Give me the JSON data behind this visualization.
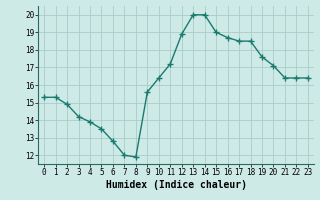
{
  "x": [
    0,
    1,
    2,
    3,
    4,
    5,
    6,
    7,
    8,
    9,
    10,
    11,
    12,
    13,
    14,
    15,
    16,
    17,
    18,
    19,
    20,
    21,
    22,
    23
  ],
  "y": [
    15.3,
    15.3,
    14.9,
    14.2,
    13.9,
    13.5,
    12.8,
    12.0,
    11.9,
    15.6,
    16.4,
    17.2,
    18.9,
    20.0,
    20.0,
    19.0,
    18.7,
    18.5,
    18.5,
    17.6,
    17.1,
    16.4,
    16.4,
    16.4
  ],
  "xlabel": "Humidex (Indice chaleur)",
  "xlim": [
    -0.5,
    23.5
  ],
  "ylim": [
    11.5,
    20.5
  ],
  "yticks": [
    12,
    13,
    14,
    15,
    16,
    17,
    18,
    19,
    20
  ],
  "xticks": [
    0,
    1,
    2,
    3,
    4,
    5,
    6,
    7,
    8,
    9,
    10,
    11,
    12,
    13,
    14,
    15,
    16,
    17,
    18,
    19,
    20,
    21,
    22,
    23
  ],
  "xtick_labels": [
    "0",
    "1",
    "2",
    "3",
    "4",
    "5",
    "6",
    "7",
    "8",
    "9",
    "10",
    "11",
    "12",
    "13",
    "14",
    "15",
    "16",
    "17",
    "18",
    "19",
    "20",
    "21",
    "22",
    "23"
  ],
  "line_color": "#1a7a6e",
  "marker": "+",
  "marker_size": 4,
  "line_width": 1.0,
  "bg_color": "#ceeae6",
  "grid_color": "#aaccc8",
  "tick_fontsize": 5.5,
  "xlabel_fontsize": 7,
  "xlabel_fontweight": "bold"
}
